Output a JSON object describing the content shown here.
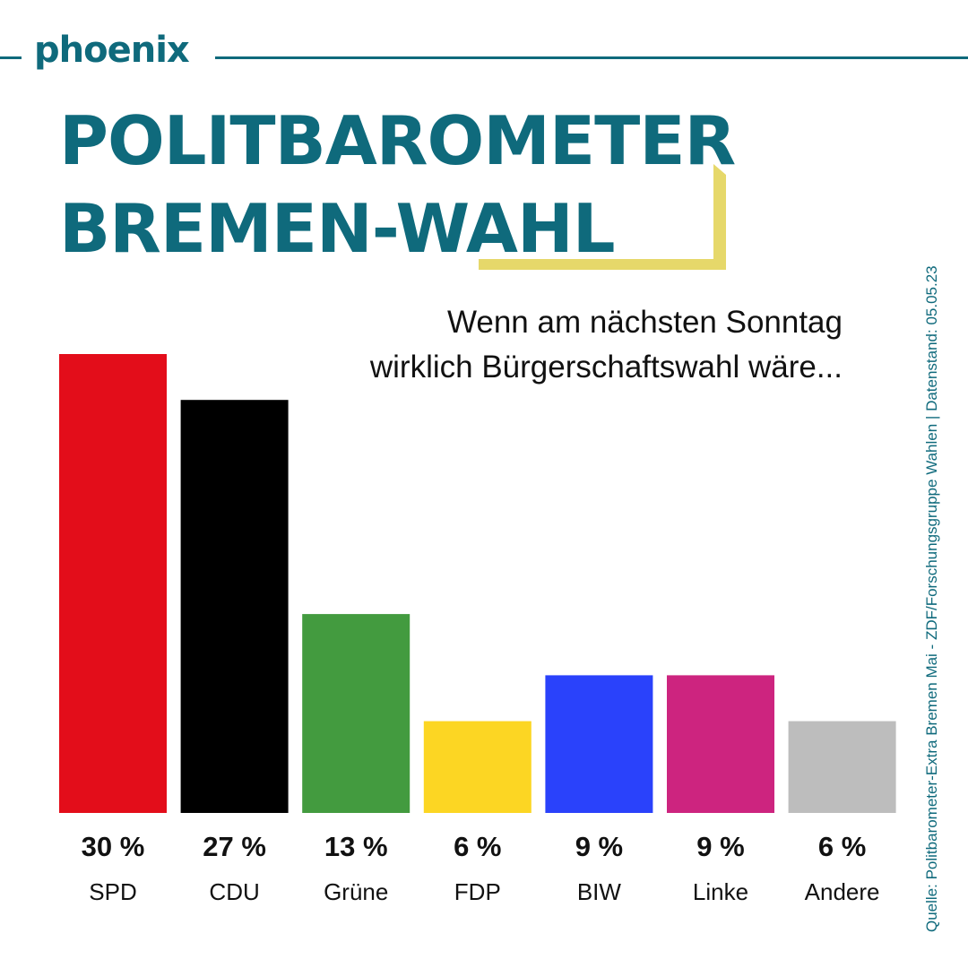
{
  "brand": {
    "logo": "phoenix"
  },
  "title": {
    "line1": "POLITBAROMETER",
    "line2": "BREMEN-WAHL"
  },
  "subtitle": {
    "line1": "Wenn am nächsten Sonntag",
    "line2": "wirklich Bürgerschaftswahl wäre..."
  },
  "source": "Quelle: Politbarometer-Extra Bremen Mai - ZDF/Forschungsgruppe Wahlen | Datenstand: 05.05.23",
  "colors": {
    "accent": "#0f6a7c",
    "bracket": "#e6d86a"
  },
  "chart_data": {
    "type": "bar",
    "title": "POLITBAROMETER BREMEN-WAHL",
    "subtitle": "Wenn am nächsten Sonntag wirklich Bürgerschaftswahl wäre...",
    "categories": [
      "SPD",
      "CDU",
      "Grüne",
      "FDP",
      "BIW",
      "Linke",
      "Andere"
    ],
    "values": [
      30,
      27,
      13,
      6,
      9,
      9,
      6
    ],
    "value_labels": [
      "30 %",
      "27 %",
      "13 %",
      "6 %",
      "9 %",
      "9 %",
      "6 %"
    ],
    "colors": [
      "#e30d1a",
      "#000000",
      "#439b3f",
      "#fcd623",
      "#2a42fb",
      "#cd247f",
      "#bdbdbd"
    ],
    "unit": "%",
    "ylim": [
      0,
      30
    ],
    "grid": false,
    "xlabel": "",
    "ylabel": ""
  }
}
